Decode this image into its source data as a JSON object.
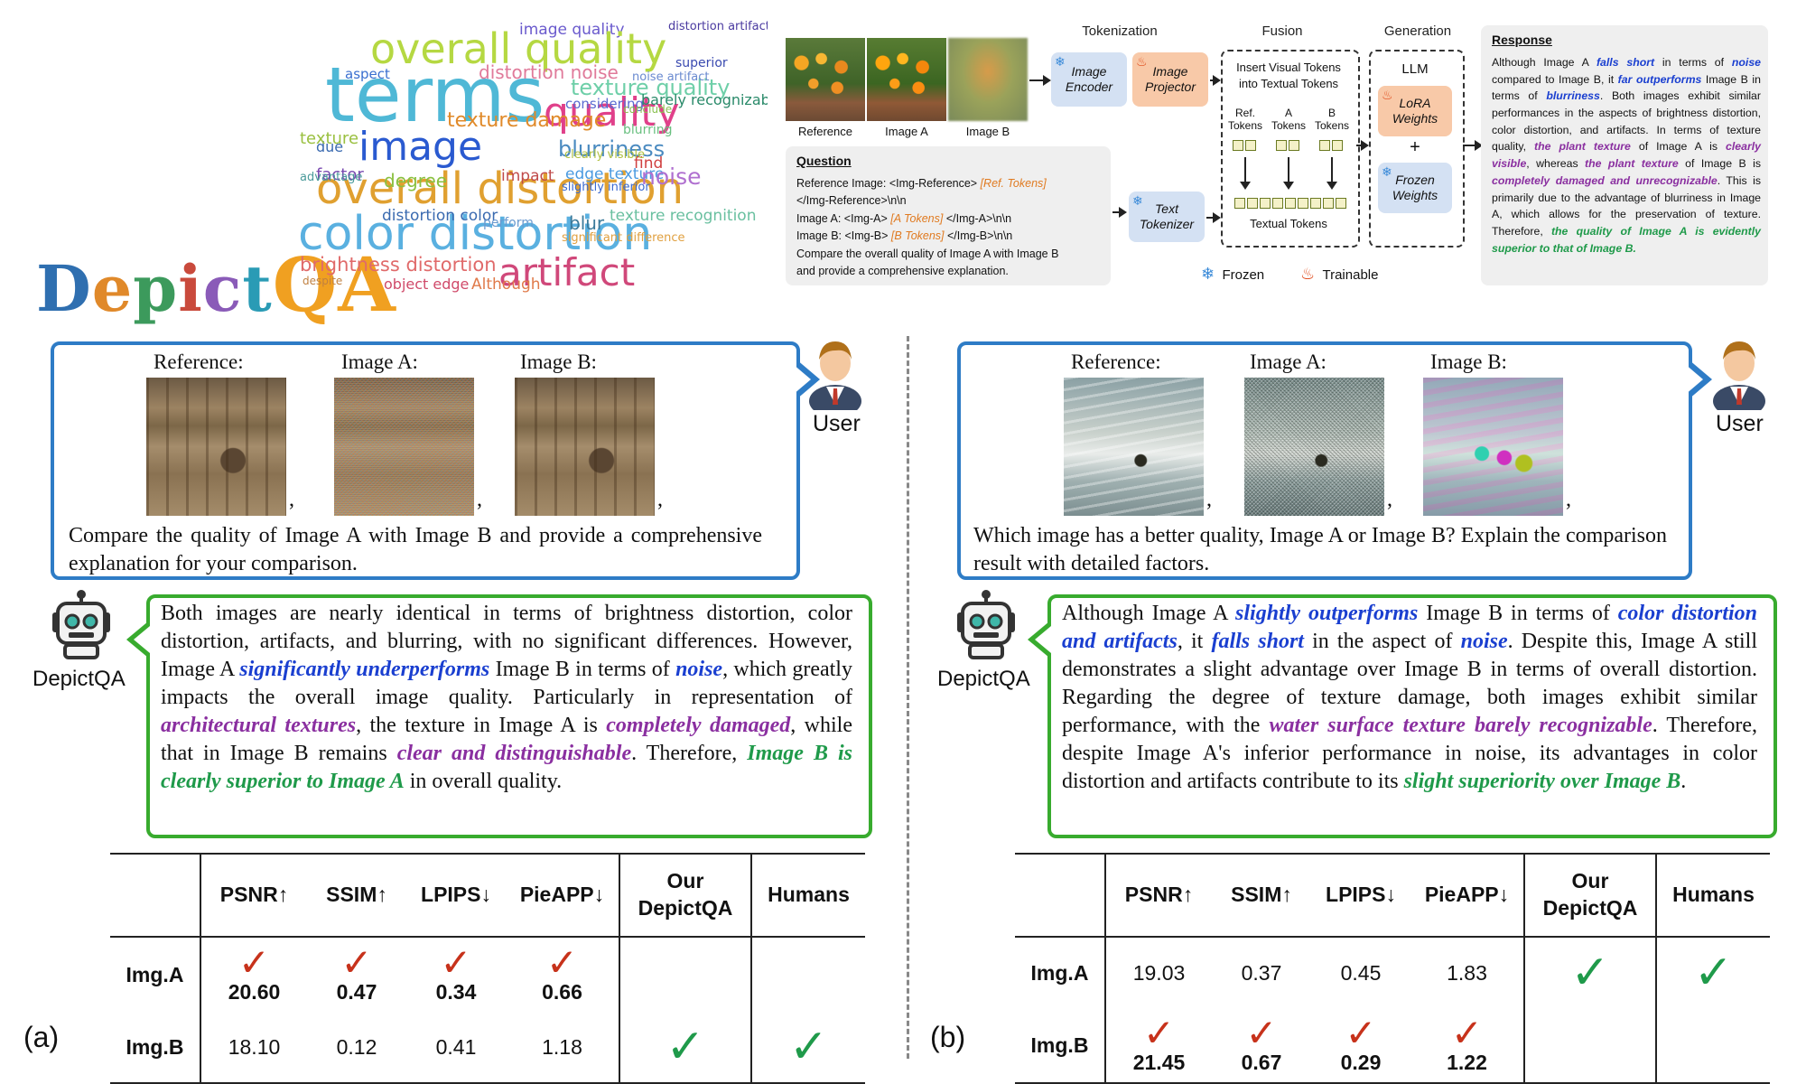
{
  "logo": {
    "d": "D",
    "e": "e",
    "p": "p",
    "i": "i",
    "c": "c",
    "t": "t",
    "qa": "QA"
  },
  "wordcloud": [
    {
      "w": "image quality",
      "c": "#6a5acd"
    },
    {
      "w": "distortion artifact",
      "c": "#4a3aa0"
    },
    {
      "w": "overall quality",
      "c": "#b5d842"
    },
    {
      "w": "terms",
      "c": "#4fb8d6"
    },
    {
      "w": "aspect",
      "c": "#3a6fd0"
    },
    {
      "w": "distortion noise",
      "c": "#e07a9a"
    },
    {
      "w": "texture quality",
      "c": "#6ecfa8"
    },
    {
      "w": "quality",
      "c": "#e0408a"
    },
    {
      "w": "considering",
      "c": "#5a6ad0"
    },
    {
      "w": "barely recognizable",
      "c": "#2a8a6a"
    },
    {
      "w": "superior",
      "c": "#3a4ab0"
    },
    {
      "w": "texture damage",
      "c": "#e08a2a"
    },
    {
      "w": "image",
      "c": "#2a5ad0"
    },
    {
      "w": "blurriness",
      "c": "#4a8ac0"
    },
    {
      "w": "overall distortion",
      "c": "#e0a030"
    },
    {
      "w": "color distortion",
      "c": "#5ab0e0"
    },
    {
      "w": "brightness distortion",
      "c": "#e06a6a"
    },
    {
      "w": "artifact",
      "c": "#d0487a"
    },
    {
      "w": "degree",
      "c": "#8ac040"
    },
    {
      "w": "distortion color",
      "c": "#3a6ab0"
    },
    {
      "w": "impact",
      "c": "#c04a4a"
    },
    {
      "w": "edge texture",
      "c": "#4a9ae0"
    },
    {
      "w": "factor",
      "c": "#7a4ab0"
    },
    {
      "w": "object edge",
      "c": "#d04a6a"
    },
    {
      "w": "Although",
      "c": "#e07a4a"
    },
    {
      "w": "noise",
      "c": "#b070d0"
    },
    {
      "w": "find",
      "c": "#d04040"
    },
    {
      "w": "blur",
      "c": "#3a7a9a"
    },
    {
      "w": "texture recognition",
      "c": "#6ac0a0"
    },
    {
      "w": "due",
      "c": "#3a6ab0"
    },
    {
      "w": "texture",
      "c": "#9ac040"
    },
    {
      "w": "perform",
      "c": "#6a9ad0"
    },
    {
      "w": "despite",
      "c": "#c08040"
    },
    {
      "w": "blurring",
      "c": "#6ac080"
    },
    {
      "w": "conclude",
      "c": "#8ac050"
    },
    {
      "w": "noise artifact",
      "c": "#6a8ad0"
    },
    {
      "w": "advantage",
      "c": "#4a9a9a"
    },
    {
      "w": "clearly visible",
      "c": "#b0c040"
    },
    {
      "w": "slightly inferior",
      "c": "#3a6ad0"
    },
    {
      "w": "significant difference",
      "c": "#e0a040"
    }
  ],
  "pipeline": {
    "images": [
      {
        "label": "Reference"
      },
      {
        "label": "Image A"
      },
      {
        "label": "Image B"
      }
    ],
    "stages": {
      "tokenization": "Tokenization",
      "fusion": "Fusion",
      "generation": "Generation"
    },
    "image_encoder": "Image\nEncoder",
    "image_projector": "Image\nProjector",
    "text_tokenizer": "Text\nTokenizer",
    "fusion_title": "Insert Visual Tokens\ninto Textual Tokens",
    "ref_tokens": "Ref.\nTokens",
    "a_tokens": "A\nTokens",
    "b_tokens": "B\nTokens",
    "textual_tokens": "Textual Tokens",
    "llm": "LLM",
    "lora": "LoRA\nWeights",
    "frozen_weights": "Frozen\nWeights",
    "plus": "+",
    "legend_frozen": "Frozen",
    "legend_trainable": "Trainable",
    "question": {
      "title": "Question",
      "line1a": "Reference Image: <Img-Reference> ",
      "line1b": "[Ref. Tokens]",
      "line2": "</Img-Reference>\\n\\n",
      "line3a": "Image A: <Img-A> ",
      "line3b": "[A Tokens]",
      "line3c": " </Img-A>\\n\\n",
      "line4a": "Image B: <Img-B> ",
      "line4b": "[B Tokens]",
      "line4c": " </Img-B>\\n\\n",
      "line5": "Compare the overall quality of Image A with Image B",
      "line6": "and provide a comprehensive explanation."
    },
    "response": {
      "title": "Response",
      "p1": "Although Image A ",
      "h1": "falls short",
      "p2": " in terms of ",
      "h2": "noise",
      "p3": " compared to Image B, it ",
      "h3": "far outperforms",
      "p4": " Image B in terms of ",
      "h4": "blurriness",
      "p5": ". Both images exhibit similar performances in the aspects of brightness distortion, color distortion, and artifacts. In terms of texture quality, ",
      "h5": "the plant texture",
      "p6": " of Image A is ",
      "h6": "clearly visible",
      "p7": ", whereas ",
      "h7": "the plant  texture",
      "p8": " of Image B is ",
      "h8": "completely damaged and unrecognizable",
      "p9": ". This is primarily due to the advantage of blurriness in Image A, which allows for the preservation of texture. Therefore, ",
      "h9": "the quality of Image A is evidently superior to that of Image B."
    }
  },
  "panel_a": {
    "id": "(a)",
    "labels": [
      "Reference:",
      "Image A:",
      "Image B:"
    ],
    "question": "Compare the quality of Image A with Image B and provide a comprehensive explanation for your comparison.",
    "user_label": "User",
    "bot_label": "DepictQA",
    "answer": {
      "t1": "Both images are nearly identical in terms of brightness distortion, color distortion, artifacts, and blurring, with no significant differences. However, Image A ",
      "b1": "significantly underperforms",
      "t2": " Image B in terms of ",
      "b2": "noise",
      "t3": ", which greatly impacts the overall image quality. Particularly in representation of ",
      "p1": "architectural textures",
      "t4": ", the texture in Image A is ",
      "p2": "completely damaged",
      "t5": ", while that in Image B remains ",
      "p3": "clear and distinguishable",
      "t6": ". Therefore, ",
      "g1": "Image B is clearly superior to Image A",
      "t7": " in overall quality."
    },
    "table": {
      "headers": [
        "PSNR↑",
        "SSIM↑",
        "LPIPS↓",
        "PieAPP↓",
        "Our DepictQA",
        "Humans"
      ],
      "rows": [
        {
          "name": "Img.A",
          "values": [
            "20.60",
            "0.47",
            "0.34",
            "0.66",
            "",
            ""
          ]
        },
        {
          "name": "Img.B",
          "values": [
            "18.10",
            "0.12",
            "0.41",
            "1.18",
            "✓",
            "✓"
          ]
        }
      ]
    }
  },
  "panel_b": {
    "id": "(b)",
    "labels": [
      "Reference:",
      "Image A:",
      "Image B:"
    ],
    "question": "Which image has a better quality, Image A or Image B? Explain the comparison result with detailed factors.",
    "user_label": "User",
    "bot_label": "DepictQA",
    "answer": {
      "t1": "Although Image A ",
      "b1": "slightly outperforms",
      "t2": " Image B in terms of ",
      "b2": "color distortion and artifacts",
      "t3": ", it ",
      "b3": "falls short",
      "t4": " in the aspect of ",
      "b4": "noise",
      "t5": ". Despite this, Image A still demonstrates a slight advantage over Image B in terms of overall distortion. Regarding the degree of texture damage, both images exhibit similar performance, with the ",
      "p1": "water surface texture barely recognizable",
      "t6": ". Therefore, despite Image A's inferior performance in noise, its advantages in color distortion and artifacts contribute to its ",
      "g1": "slight superiority over Image B",
      "t7": "."
    },
    "table": {
      "headers": [
        "PSNR↑",
        "SSIM↑",
        "LPIPS↓",
        "PieAPP↓",
        "Our DepictQA",
        "Humans"
      ],
      "rows": [
        {
          "name": "Img.A",
          "values": [
            "19.03",
            "0.37",
            "0.45",
            "1.83",
            "✓",
            "✓"
          ]
        },
        {
          "name": "Img.B",
          "values": [
            "21.45",
            "0.67",
            "0.29",
            "1.22",
            "",
            ""
          ]
        }
      ]
    }
  },
  "symbols": {
    "red_check": "✓",
    "comma": ","
  },
  "colors": {
    "user_border": "#2e7cc6",
    "bot_border": "#38ab2e",
    "highlight_blue": "#1a3fd0",
    "highlight_purple": "#8a2fa0",
    "highlight_green": "#1f9a4a",
    "check_red": "#c7321b"
  }
}
